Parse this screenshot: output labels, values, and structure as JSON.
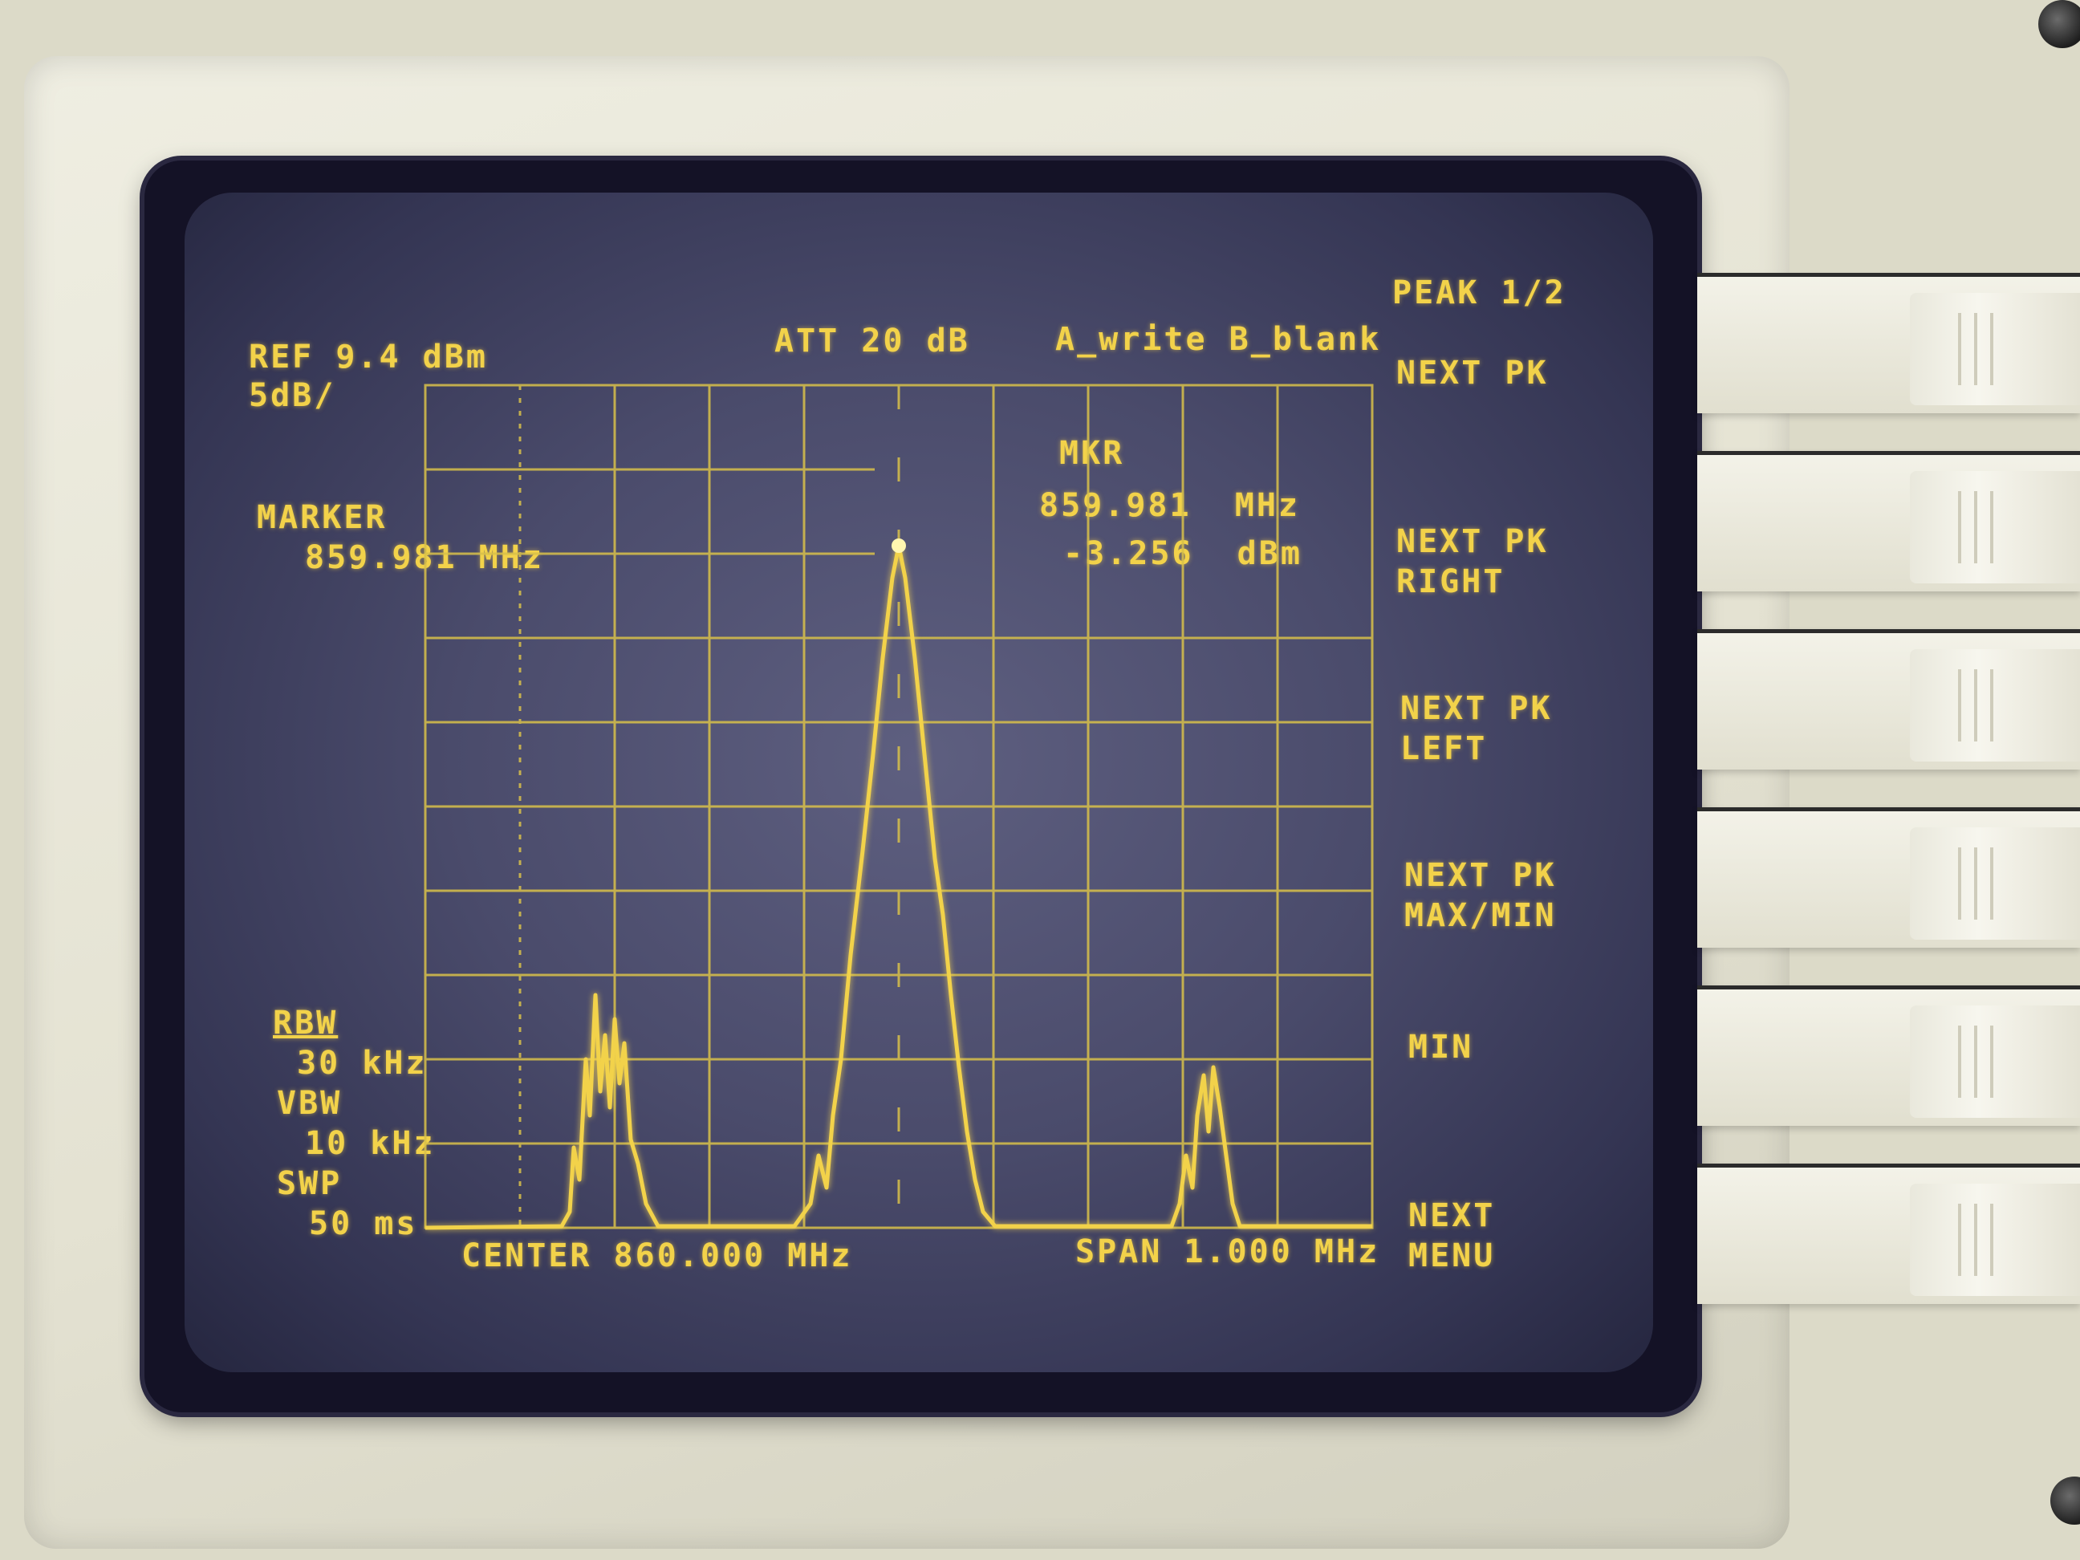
{
  "header": {
    "ref": "REF 9.4 dBm",
    "scale": "5dB/",
    "attenuation": "ATT 20 dB",
    "trace_mode": "A_write B_blank"
  },
  "marker_left": {
    "label": "MARKER",
    "freq": "859.981 MHz"
  },
  "marker_readout": {
    "label": "MKR",
    "freq": "859.981  MHz",
    "level": "-3.256  dBm"
  },
  "bandwidths": {
    "rbw_label": "RBW",
    "rbw_value": "30 kHz",
    "vbw_label": "VBW",
    "vbw_value": "10 kHz",
    "swp_label": "SWP",
    "swp_value": "50 ms"
  },
  "footer": {
    "center": "CENTER 860.000 MHz",
    "span": "SPAN 1.000 MHz"
  },
  "menu": {
    "title": "PEAK 1/2",
    "items": [
      {
        "line1": "NEXT PK",
        "line2": ""
      },
      {
        "line1": "NEXT PK",
        "line2": "RIGHT"
      },
      {
        "line1": "NEXT PK",
        "line2": "LEFT"
      },
      {
        "line1": "NEXT PK",
        "line2": "MAX/MIN"
      },
      {
        "line1": "MIN",
        "line2": ""
      },
      {
        "line1": "NEXT",
        "line2": "MENU"
      }
    ]
  },
  "colors": {
    "trace": "#f2d24a",
    "graticule": "#d9c14a",
    "screen": "#4a4b6b"
  }
}
